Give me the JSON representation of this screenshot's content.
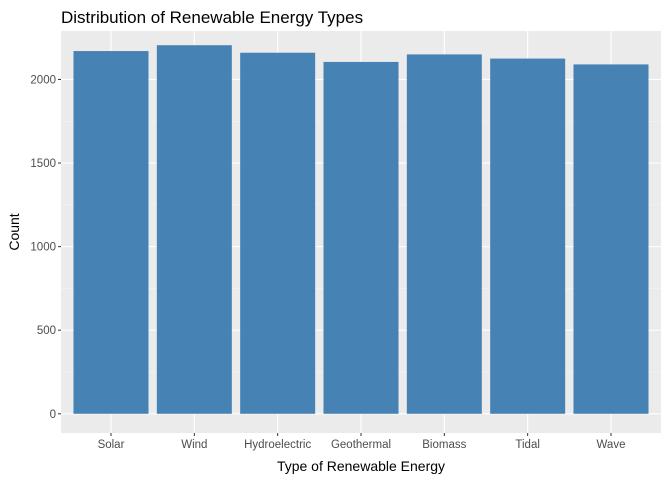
{
  "chart_data": {
    "type": "bar",
    "title": "Distribution of Renewable Energy Types",
    "xlabel": "Type of Renewable Energy",
    "ylabel": "Count",
    "categories": [
      "Solar",
      "Wind",
      "Hydroelectric",
      "Geothermal",
      "Biomass",
      "Tidal",
      "Wave"
    ],
    "values": [
      2170,
      2205,
      2160,
      2105,
      2150,
      2125,
      2090
    ],
    "ylim": [
      -115,
      2290
    ],
    "yticks": [
      0,
      500,
      1000,
      1500,
      2000
    ],
    "ytick_labels": [
      "0",
      "500",
      "1000",
      "1500",
      "2000"
    ],
    "grid": true,
    "legend": "none",
    "colors": {
      "bar": "#4682B4",
      "panel_background": "#EBEBEB",
      "grid_major": "#FFFFFF",
      "grid_minor": "#F5F5F5",
      "tick": "#333333"
    }
  }
}
